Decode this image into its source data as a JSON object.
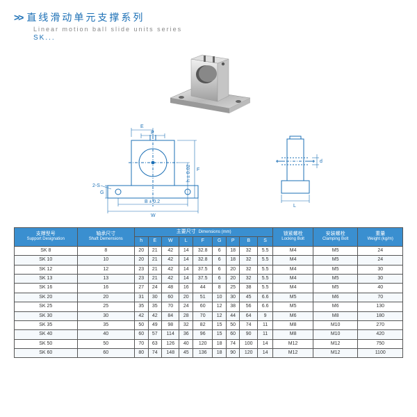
{
  "header": {
    "chevrons": ">>",
    "title_cn": "直线滑动单元支撑系列",
    "title_en": "Linear motion ball slide units series",
    "subtitle": "SK..."
  },
  "diagrams": {
    "front": {
      "labels": {
        "E": "E",
        "P": "P",
        "twoS": "2-S",
        "G": "G",
        "h": "h ± 0.02",
        "F": "F",
        "B": "B ± 0.2",
        "W": "W"
      }
    },
    "side": {
      "labels": {
        "d": "d",
        "L": "L"
      }
    }
  },
  "table": {
    "header": {
      "support_cn": "支撑型号",
      "support_en": "Support Designation",
      "shaft_cn": "轴承尺寸",
      "shaft_en": "Shaft Demensions",
      "dims_cn": "主要尺寸",
      "dims_en": "Dimensions (mm)",
      "h": "h",
      "E": "E",
      "W": "W",
      "L": "L",
      "F": "F",
      "G": "G",
      "P": "P",
      "B": "B",
      "S": "S",
      "lock_cn": "锁紧螺栓",
      "lock_en": "Locking Bolt",
      "clamp_cn": "安装螺栓",
      "clamp_en": "Clamping Bolt",
      "weight_cn": "重量",
      "weight_en": "Weight (kg/m)"
    },
    "rows": [
      {
        "m": "SK 8",
        "d": "8",
        "h": "20",
        "E": "21",
        "W": "42",
        "L": "14",
        "F": "32.8",
        "G": "6",
        "P": "18",
        "B": "32",
        "S": "5.5",
        "lock": "M4",
        "clamp": "M5",
        "wt": "24"
      },
      {
        "m": "SK 10",
        "d": "10",
        "h": "20",
        "E": "21",
        "W": "42",
        "L": "14",
        "F": "32.8",
        "G": "6",
        "P": "18",
        "B": "32",
        "S": "5.5",
        "lock": "M4",
        "clamp": "M5",
        "wt": "24"
      },
      {
        "m": "SK 12",
        "d": "12",
        "h": "23",
        "E": "21",
        "W": "42",
        "L": "14",
        "F": "37.5",
        "G": "6",
        "P": "20",
        "B": "32",
        "S": "5.5",
        "lock": "M4",
        "clamp": "M5",
        "wt": "30"
      },
      {
        "m": "SK 13",
        "d": "13",
        "h": "23",
        "E": "21",
        "W": "42",
        "L": "14",
        "F": "37.5",
        "G": "6",
        "P": "20",
        "B": "32",
        "S": "5.5",
        "lock": "M4",
        "clamp": "M5",
        "wt": "30"
      },
      {
        "m": "SK 16",
        "d": "16",
        "h": "27",
        "E": "24",
        "W": "48",
        "L": "16",
        "F": "44",
        "G": "8",
        "P": "25",
        "B": "38",
        "S": "5.5",
        "lock": "M4",
        "clamp": "M5",
        "wt": "40"
      },
      {
        "m": "SK 20",
        "d": "20",
        "h": "31",
        "E": "30",
        "W": "60",
        "L": "20",
        "F": "51",
        "G": "10",
        "P": "30",
        "B": "45",
        "S": "6.6",
        "lock": "M5",
        "clamp": "M6",
        "wt": "70"
      },
      {
        "m": "SK 25",
        "d": "25",
        "h": "35",
        "E": "35",
        "W": "70",
        "L": "24",
        "F": "60",
        "G": "12",
        "P": "38",
        "B": "56",
        "S": "6.6",
        "lock": "M5",
        "clamp": "M6",
        "wt": "130"
      },
      {
        "m": "SK 30",
        "d": "30",
        "h": "42",
        "E": "42",
        "W": "84",
        "L": "28",
        "F": "70",
        "G": "12",
        "P": "44",
        "B": "64",
        "S": "9",
        "lock": "M6",
        "clamp": "M8",
        "wt": "180"
      },
      {
        "m": "SK 35",
        "d": "35",
        "h": "50",
        "E": "49",
        "W": "98",
        "L": "32",
        "F": "82",
        "G": "15",
        "P": "50",
        "B": "74",
        "S": "11",
        "lock": "M8",
        "clamp": "M10",
        "wt": "270"
      },
      {
        "m": "SK 40",
        "d": "40",
        "h": "60",
        "E": "57",
        "W": "114",
        "L": "36",
        "F": "96",
        "G": "15",
        "P": "60",
        "B": "90",
        "S": "11",
        "lock": "M8",
        "clamp": "M10",
        "wt": "420"
      },
      {
        "m": "SK 50",
        "d": "50",
        "h": "70",
        "E": "63",
        "W": "126",
        "L": "40",
        "F": "120",
        "G": "18",
        "P": "74",
        "B": "100",
        "S": "14",
        "lock": "M12",
        "clamp": "M12",
        "wt": "750"
      },
      {
        "m": "SK 60",
        "d": "60",
        "h": "80",
        "E": "74",
        "W": "148",
        "L": "45",
        "F": "136",
        "G": "18",
        "P": "90",
        "B": "120",
        "S": "14",
        "lock": "M12",
        "clamp": "M12",
        "wt": "1100"
      }
    ]
  }
}
